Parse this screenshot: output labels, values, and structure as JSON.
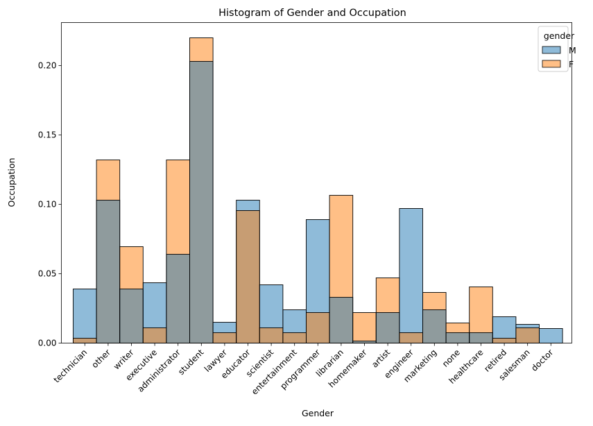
{
  "chart_data": {
    "type": "bar",
    "title": "Histogram of Gender and Occupation",
    "xlabel": "Gender",
    "ylabel": "Occupation",
    "ylim": [
      0,
      0.231
    ],
    "yticks": [
      "0.00",
      "0.05",
      "0.10",
      "0.15",
      "0.20"
    ],
    "categories": [
      "technician",
      "other",
      "writer",
      "executive",
      "administrator",
      "student",
      "lawyer",
      "educator",
      "scientist",
      "entertainment",
      "programmer",
      "librarian",
      "homemaker",
      "artist",
      "engineer",
      "marketing",
      "none",
      "healthcare",
      "retired",
      "salesman",
      "doctor"
    ],
    "series": [
      {
        "name": "M",
        "color": "#1f77b4",
        "values": [
          0.039,
          0.103,
          0.039,
          0.0435,
          0.064,
          0.203,
          0.015,
          0.103,
          0.042,
          0.024,
          0.089,
          0.033,
          0.0015,
          0.022,
          0.097,
          0.024,
          0.0075,
          0.0075,
          0.019,
          0.0135,
          0.0105
        ]
      },
      {
        "name": "F",
        "color": "#ff7f0e",
        "values": [
          0.0035,
          0.132,
          0.0695,
          0.011,
          0.132,
          0.22,
          0.0075,
          0.0955,
          0.011,
          0.0075,
          0.022,
          0.1065,
          0.022,
          0.047,
          0.0075,
          0.0365,
          0.0145,
          0.0405,
          0.0035,
          0.011,
          0
        ]
      }
    ],
    "legend": {
      "title": "gender",
      "position": "top-right"
    },
    "grid": false
  }
}
